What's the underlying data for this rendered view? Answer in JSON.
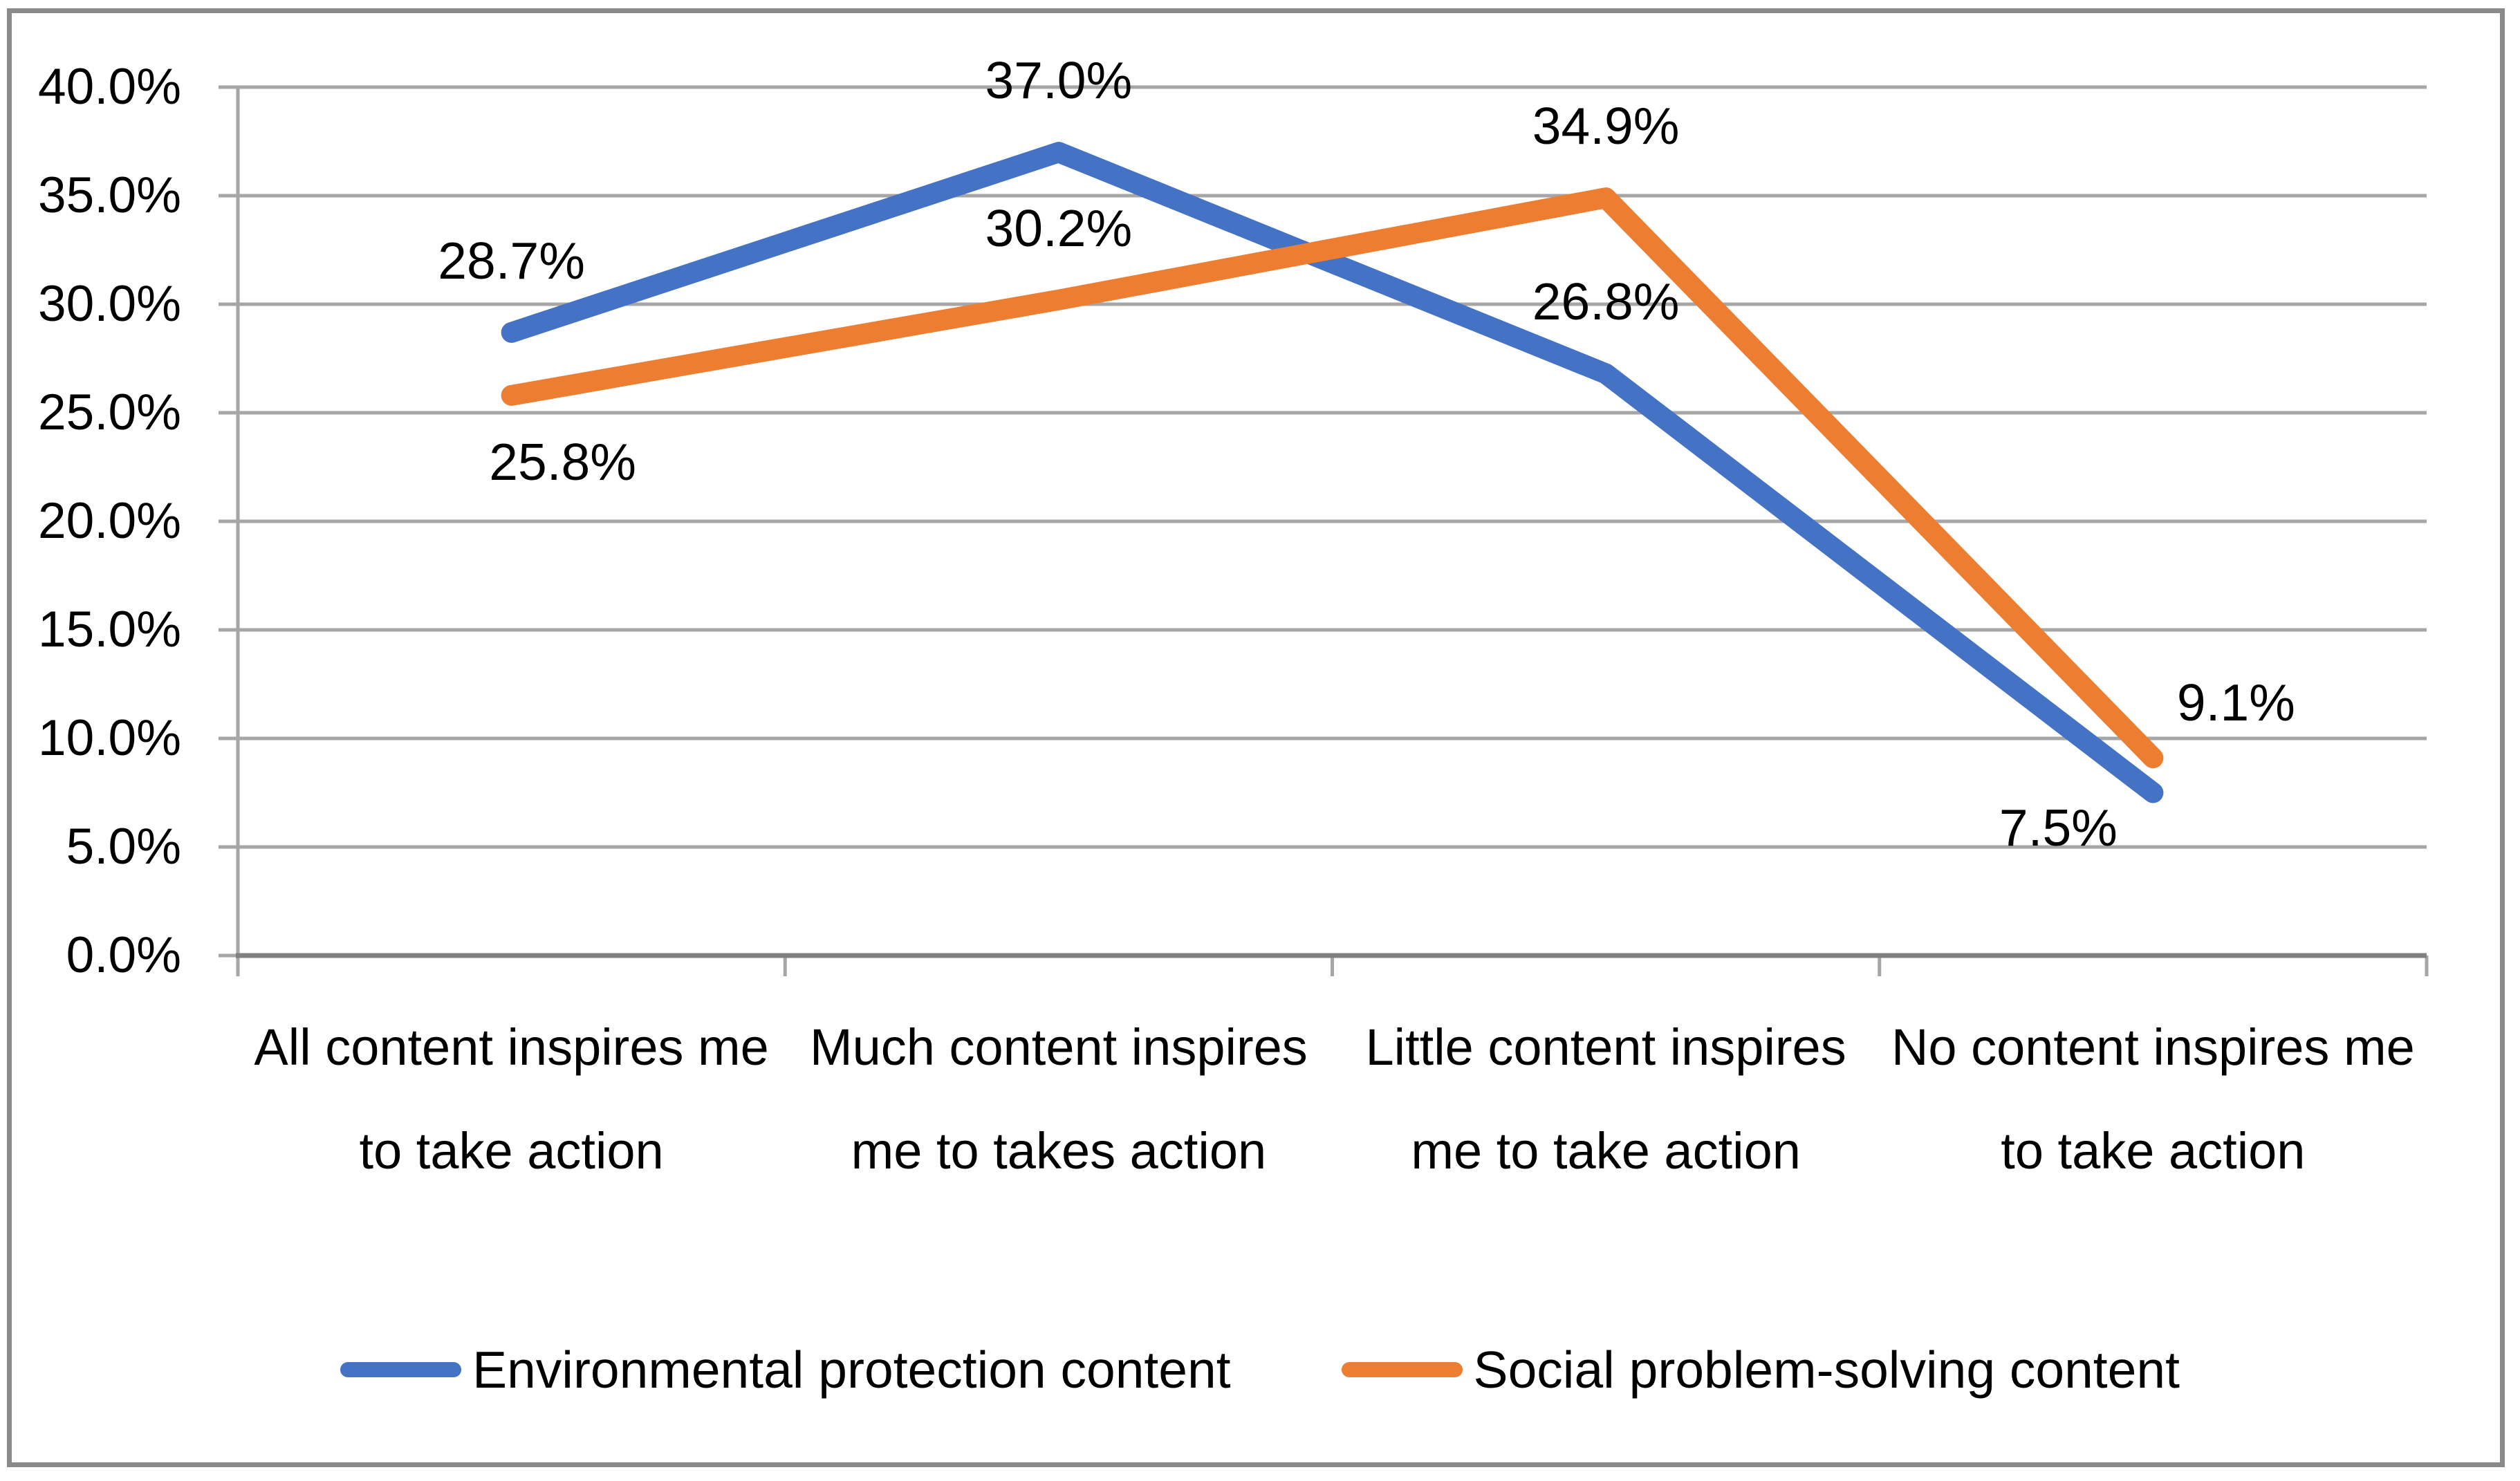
{
  "chart_data": {
    "type": "line",
    "categories": [
      {
        "label": "All content inspires me to take action",
        "lines": [
          "All content inspires me",
          "to take action"
        ]
      },
      {
        "label": "Much content inspires me to takes action",
        "lines": [
          "Much content inspires",
          "me to takes action"
        ]
      },
      {
        "label": "Little content inspires me to take action",
        "lines": [
          "Little content inspires",
          "me to take action"
        ]
      },
      {
        "label": "No content inspires me to take action",
        "lines": [
          "No content inspires me",
          "to take action"
        ]
      }
    ],
    "series": [
      {
        "name": "Environmental protection content",
        "color": "#4472C4",
        "values": [
          28.7,
          37.0,
          26.8,
          7.5
        ],
        "labels": [
          "28.7%",
          "37.0%",
          "26.8%",
          "7.5%"
        ],
        "label_positions": [
          "above",
          "above",
          "above",
          "below-left"
        ]
      },
      {
        "name": "Social problem-solving content",
        "color": "#ED7D31",
        "values": [
          25.8,
          30.2,
          34.9,
          9.1
        ],
        "labels": [
          "25.8%",
          "30.2%",
          "34.9%",
          "9.1%"
        ],
        "label_positions": [
          "below-right",
          "above",
          "above",
          "above-right"
        ]
      }
    ],
    "y_axis": {
      "min": 0,
      "max": 40,
      "step": 5,
      "tick_labels": [
        "0.0%",
        "5.0%",
        "10.0%",
        "15.0%",
        "20.0%",
        "25.0%",
        "30.0%",
        "35.0%",
        "40.0%"
      ]
    },
    "grid": true,
    "legend_position": "bottom",
    "title": "",
    "xlabel": "",
    "ylabel": ""
  },
  "colors": {
    "gridline": "#A6A6A6",
    "x_axis": "#808080",
    "y_axis": "#A6A6A6",
    "frame": "#8A8A8A",
    "text": "#000000"
  }
}
